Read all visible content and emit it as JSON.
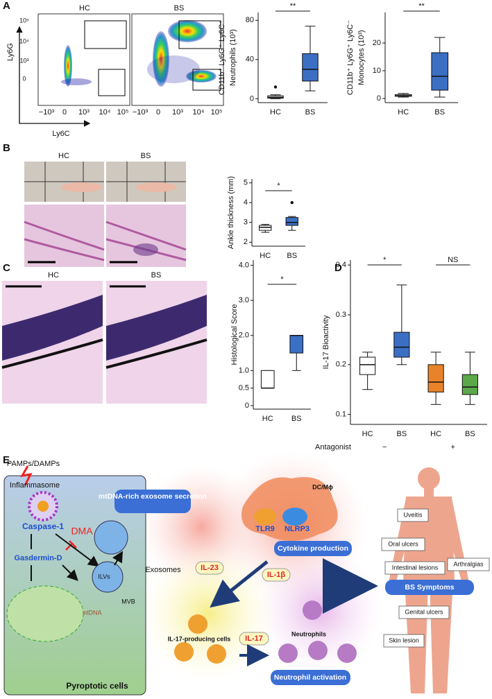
{
  "chart_data": [
    {
      "type": "box",
      "ylabel": [
        "CD11b⁺ Ly6G⁺ Ly6C⁺",
        "Neutrophils (10³)"
      ],
      "categories": [
        "HC",
        "BS"
      ],
      "boxes": [
        {
          "min": 0,
          "q1": 0.5,
          "median": 1.5,
          "q3": 3,
          "max": 4,
          "color": "#ffffff",
          "outliers": [
            12
          ]
        },
        {
          "min": 8,
          "q1": 18,
          "median": 30,
          "q3": 46,
          "max": 74,
          "color": "#3b6fc4",
          "outliers": []
        }
      ],
      "ylim": [
        -4,
        88
      ],
      "yticks": [
        0,
        40,
        80
      ],
      "annotations": [
        "**"
      ]
    },
    {
      "type": "box",
      "ylabel": [
        "CD11b⁺ Ly6G⁺ Ly6C⁻",
        "Monocytes (10³)"
      ],
      "categories": [
        "HC",
        "BS"
      ],
      "boxes": [
        {
          "min": 0.5,
          "q1": 0.8,
          "median": 1,
          "q3": 1.4,
          "max": 1.8,
          "color": "#ffffff",
          "outliers": []
        },
        {
          "min": 0.5,
          "q1": 3,
          "median": 8,
          "q3": 16.5,
          "max": 22,
          "color": "#3b6fc4",
          "outliers": []
        }
      ],
      "ylim": [
        -1.5,
        31
      ],
      "yticks": [
        0,
        10,
        20
      ],
      "annotations": [
        "**"
      ]
    },
    {
      "type": "box",
      "ylabel": [
        "Ankle thickness (mm)"
      ],
      "categories": [
        "HC",
        "BS"
      ],
      "boxes": [
        {
          "min": 2.5,
          "q1": 2.6,
          "median": 2.75,
          "q3": 2.85,
          "max": 2.9,
          "color": "#ffffff",
          "outliers": []
        },
        {
          "min": 2.6,
          "q1": 2.85,
          "median": 3,
          "q3": 3.25,
          "max": 3.3,
          "color": "#3b6fc4",
          "outliers": [
            4
          ]
        }
      ],
      "ylim": [
        1.8,
        5.2
      ],
      "yticks": [
        2,
        3,
        4,
        5
      ],
      "annotations": [
        "*"
      ]
    },
    {
      "type": "box",
      "ylabel": [
        "Histological Score"
      ],
      "categories": [
        "HC",
        "BS"
      ],
      "boxes": [
        {
          "min": 0.5,
          "q1": 0.5,
          "median": 0.5,
          "q3": 1,
          "max": 1,
          "color": "#ffffff",
          "outliers": []
        },
        {
          "min": 1,
          "q1": 1.5,
          "median": 2,
          "q3": 2,
          "max": 2,
          "color": "#3b6fc4",
          "outliers": []
        }
      ],
      "ylim": [
        -0.1,
        4.15
      ],
      "yticks": [
        0,
        0.5,
        {
          "value": 1,
          "label": "1.0"
        },
        {
          "value": 2,
          "label": "2.0"
        },
        {
          "value": 3,
          "label": "3.0"
        },
        {
          "value": 4,
          "label": "4.0"
        }
      ],
      "annotations": [
        "*"
      ]
    },
    {
      "type": "box",
      "ylabel": [
        "IL-17 Bioactivity"
      ],
      "categories": [
        "HC",
        "BS",
        "HC",
        "BS"
      ],
      "boxes": [
        {
          "min": 0.15,
          "q1": 0.18,
          "median": 0.2,
          "q3": 0.215,
          "max": 0.225,
          "color": "#ffffff",
          "outliers": []
        },
        {
          "min": 0.2,
          "q1": 0.215,
          "median": 0.235,
          "q3": 0.265,
          "max": 0.36,
          "color": "#3b6fc4",
          "outliers": []
        },
        {
          "min": 0.12,
          "q1": 0.145,
          "median": 0.165,
          "q3": 0.2,
          "max": 0.225,
          "color": "#e8832a",
          "outliers": []
        },
        {
          "min": 0.12,
          "q1": 0.14,
          "median": 0.155,
          "q3": 0.18,
          "max": 0.225,
          "color": "#5aa84a",
          "outliers": []
        }
      ],
      "ylim": [
        0.08,
        0.41
      ],
      "yticks": [
        0.1,
        0.2,
        0.3,
        0.4
      ],
      "annotations": [
        "*",
        "NS"
      ],
      "group_title": "Antagonist",
      "group_labels": [
        "−",
        "+"
      ]
    }
  ],
  "figure": {
    "panel_labels": [
      "A",
      "B",
      "C",
      "D",
      "E"
    ],
    "flow": {
      "titles": [
        "HC",
        "BS"
      ],
      "y_axis": "Ly6G",
      "x_axis": "Ly6C",
      "yticks": [
        "10⁵",
        "10⁴",
        "10³",
        "0"
      ],
      "xticks": [
        "−10³",
        "0",
        "10³",
        "10⁴",
        "10⁵"
      ]
    },
    "panel_b": {
      "photo_labels": [
        "HC",
        "BS"
      ]
    },
    "panel_c": {
      "photo_labels": [
        "HC",
        "BS"
      ]
    },
    "panel_e": {
      "stimulus": "PAMPs/DAMPs",
      "inflammasome": "Inflammasome",
      "caspase": "Caspase-1",
      "inhibitor": "DMA",
      "gasdermin": "Gasdermin-D",
      "ilvs": "ILVs",
      "mvb": "MVB",
      "mtdna": "mtDNA",
      "cell": "Pyroptotic cells",
      "secretion": "mtDNA-rich exosome secretion",
      "exosomes": "Exosomes",
      "il23": "IL-23",
      "il1b": "IL-1β",
      "dc": "DC/Mϕ",
      "tlr9": "TLR9",
      "nlrp3": "NLRP3",
      "cytokine": "Cytokine production",
      "il17cells": "IL-17-producing cells",
      "il17": "IL-17",
      "neutrophils": "Neutrophils",
      "activation": "Neutrophil activation",
      "symptoms": {
        "title": "BS Symptoms",
        "items": [
          "Uveitis",
          "Oral ulcers",
          "Intestinal lesions",
          "Arthralgias",
          "Genital ulcers",
          "Skin lesion"
        ]
      }
    }
  }
}
